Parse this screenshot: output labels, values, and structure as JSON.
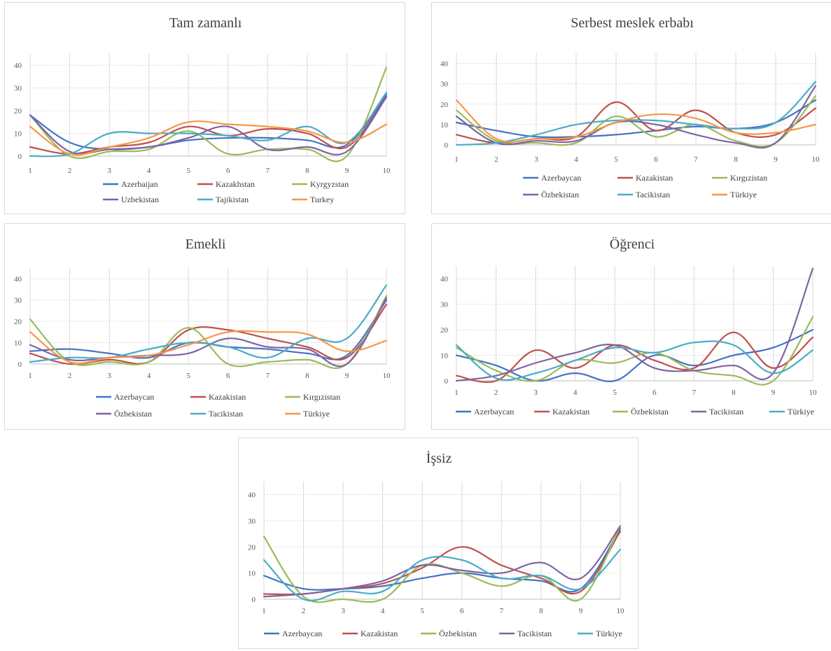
{
  "colors": {
    "blue": "#4472C4",
    "red": "#C0504D",
    "green": "#9BBB59",
    "purple": "#8064A2",
    "teal": "#4BACC6",
    "orange": "#F79646"
  },
  "chart_data": [
    {
      "type": "line",
      "title": "Tam zamanlı",
      "x": [
        1,
        2,
        3,
        4,
        5,
        6,
        7,
        8,
        9,
        10
      ],
      "ylim": [
        0,
        45
      ],
      "yticks": [
        0,
        10,
        20,
        30,
        40
      ],
      "grid": true,
      "legend": "bottom",
      "series": [
        {
          "name": "Azerbaijan",
          "color": "blue",
          "values": [
            18,
            6,
            3,
            4,
            7,
            8,
            8,
            7,
            5,
            27
          ]
        },
        {
          "name": "Kazakhstan",
          "color": "red",
          "values": [
            4,
            1,
            4,
            6,
            13,
            9,
            12,
            10,
            4,
            26
          ]
        },
        {
          "name": "Kyrgyzstan",
          "color": "green",
          "values": [
            18,
            0,
            2,
            3,
            11,
            1,
            3,
            3,
            0,
            39
          ]
        },
        {
          "name": "Uzbekistan",
          "color": "purple",
          "values": [
            18,
            2,
            3,
            4,
            8,
            13,
            3,
            4,
            2,
            26
          ]
        },
        {
          "name": "Tajikistan",
          "color": "teal",
          "values": [
            0,
            1,
            10,
            10,
            10,
            9,
            7,
            13,
            6,
            28
          ]
        },
        {
          "name": "Turkey",
          "color": "orange",
          "values": [
            13,
            1,
            4,
            8,
            15,
            14,
            13,
            11,
            6,
            14
          ]
        }
      ]
    },
    {
      "type": "line",
      "title": "Serbest meslek erbabı",
      "x": [
        1,
        2,
        3,
        4,
        5,
        6,
        7,
        8,
        9,
        10
      ],
      "ylim": [
        0,
        45
      ],
      "yticks": [
        0,
        10,
        20,
        30,
        40
      ],
      "grid": true,
      "legend": "bottom",
      "series": [
        {
          "name": "Azerbaycan",
          "color": "blue",
          "values": [
            11,
            7,
            4,
            4,
            5,
            7,
            9,
            8,
            11,
            22
          ]
        },
        {
          "name": "Kazakistan",
          "color": "red",
          "values": [
            5,
            1,
            3,
            4,
            21,
            7,
            17,
            6,
            5,
            18
          ]
        },
        {
          "name": "Kırgızistan",
          "color": "green",
          "values": [
            17,
            2,
            1,
            1,
            14,
            4,
            10,
            2,
            1,
            24
          ]
        },
        {
          "name": "Özbekistan",
          "color": "purple",
          "values": [
            14,
            1,
            2,
            2,
            11,
            10,
            5,
            1,
            1,
            29
          ]
        },
        {
          "name": "Tacikistan",
          "color": "teal",
          "values": [
            0,
            1,
            5,
            10,
            12,
            12,
            10,
            8,
            11,
            31
          ]
        },
        {
          "name": "Türkiye",
          "color": "orange",
          "values": [
            22,
            3,
            3,
            4,
            11,
            15,
            13,
            6,
            6,
            10
          ]
        }
      ]
    },
    {
      "type": "line",
      "title": "Emekli",
      "x": [
        1,
        2,
        3,
        4,
        5,
        6,
        7,
        8,
        9,
        10
      ],
      "ylim": [
        0,
        45
      ],
      "yticks": [
        0,
        10,
        20,
        30,
        40
      ],
      "grid": true,
      "legend": "bottom",
      "series": [
        {
          "name": "Azerbaycan",
          "color": "blue",
          "values": [
            6,
            7,
            5,
            3,
            10,
            8,
            7,
            5,
            4,
            30
          ]
        },
        {
          "name": "Kazakistan",
          "color": "red",
          "values": [
            5,
            0,
            2,
            1,
            16,
            16,
            12,
            8,
            3,
            28
          ]
        },
        {
          "name": "Kırgızistan",
          "color": "green",
          "values": [
            21,
            1,
            1,
            1,
            17,
            0,
            1,
            2,
            0,
            32
          ]
        },
        {
          "name": "Özbekistan",
          "color": "purple",
          "values": [
            9,
            2,
            3,
            4,
            5,
            12,
            8,
            7,
            0,
            31
          ]
        },
        {
          "name": "Tacikistan",
          "color": "teal",
          "values": [
            1,
            3,
            3,
            7,
            10,
            8,
            3,
            12,
            12,
            37
          ]
        },
        {
          "name": "Türkiye",
          "color": "orange",
          "values": [
            15,
            1,
            3,
            4,
            9,
            15,
            15,
            14,
            6,
            11
          ]
        }
      ]
    },
    {
      "type": "line",
      "title": "Öğrenci",
      "x": [
        1,
        2,
        3,
        4,
        5,
        6,
        7,
        8,
        9,
        10
      ],
      "ylim": [
        0,
        45
      ],
      "yticks": [
        0,
        10,
        20,
        30,
        40
      ],
      "grid": true,
      "legend": "bottom",
      "series": [
        {
          "name": "Azerbaycan",
          "color": "blue",
          "values": [
            10,
            6,
            0,
            3,
            0,
            10,
            6,
            10,
            13,
            20
          ]
        },
        {
          "name": "Kazakistan",
          "color": "red",
          "values": [
            2,
            0,
            12,
            5,
            14,
            8,
            5,
            19,
            5,
            17
          ]
        },
        {
          "name": "Özbekistan",
          "color": "green",
          "values": [
            13,
            4,
            0,
            8,
            7,
            11,
            4,
            2,
            0,
            25
          ]
        },
        {
          "name": "Tacikistan",
          "color": "purple",
          "values": [
            0,
            2,
            7,
            11,
            14,
            5,
            4,
            6,
            3,
            44
          ]
        },
        {
          "name": "Türkiye",
          "color": "teal",
          "values": [
            14,
            1,
            3,
            8,
            13,
            11,
            15,
            14,
            3,
            12
          ]
        }
      ]
    },
    {
      "type": "line",
      "title": "İşsiz",
      "x": [
        1,
        2,
        3,
        4,
        5,
        6,
        7,
        8,
        9,
        10
      ],
      "ylim": [
        0,
        45
      ],
      "yticks": [
        0,
        10,
        20,
        30,
        40
      ],
      "grid": true,
      "legend": "bottom",
      "series": [
        {
          "name": "Azerbaycan",
          "color": "blue",
          "values": [
            9,
            4,
            4,
            5,
            8,
            10,
            8,
            7,
            4,
            27
          ]
        },
        {
          "name": "Kazakistan",
          "color": "red",
          "values": [
            2,
            2,
            4,
            6,
            12,
            20,
            13,
            8,
            3,
            26
          ]
        },
        {
          "name": "Özbekistan",
          "color": "green",
          "values": [
            24,
            1,
            0,
            0,
            13,
            10,
            5,
            9,
            0,
            28
          ]
        },
        {
          "name": "Tacikistan",
          "color": "purple",
          "values": [
            1,
            2,
            4,
            7,
            13,
            11,
            10,
            14,
            8,
            28
          ]
        },
        {
          "name": "Türkiye",
          "color": "teal",
          "values": [
            15,
            0,
            3,
            3,
            15,
            15,
            8,
            9,
            4,
            19
          ]
        }
      ]
    }
  ]
}
